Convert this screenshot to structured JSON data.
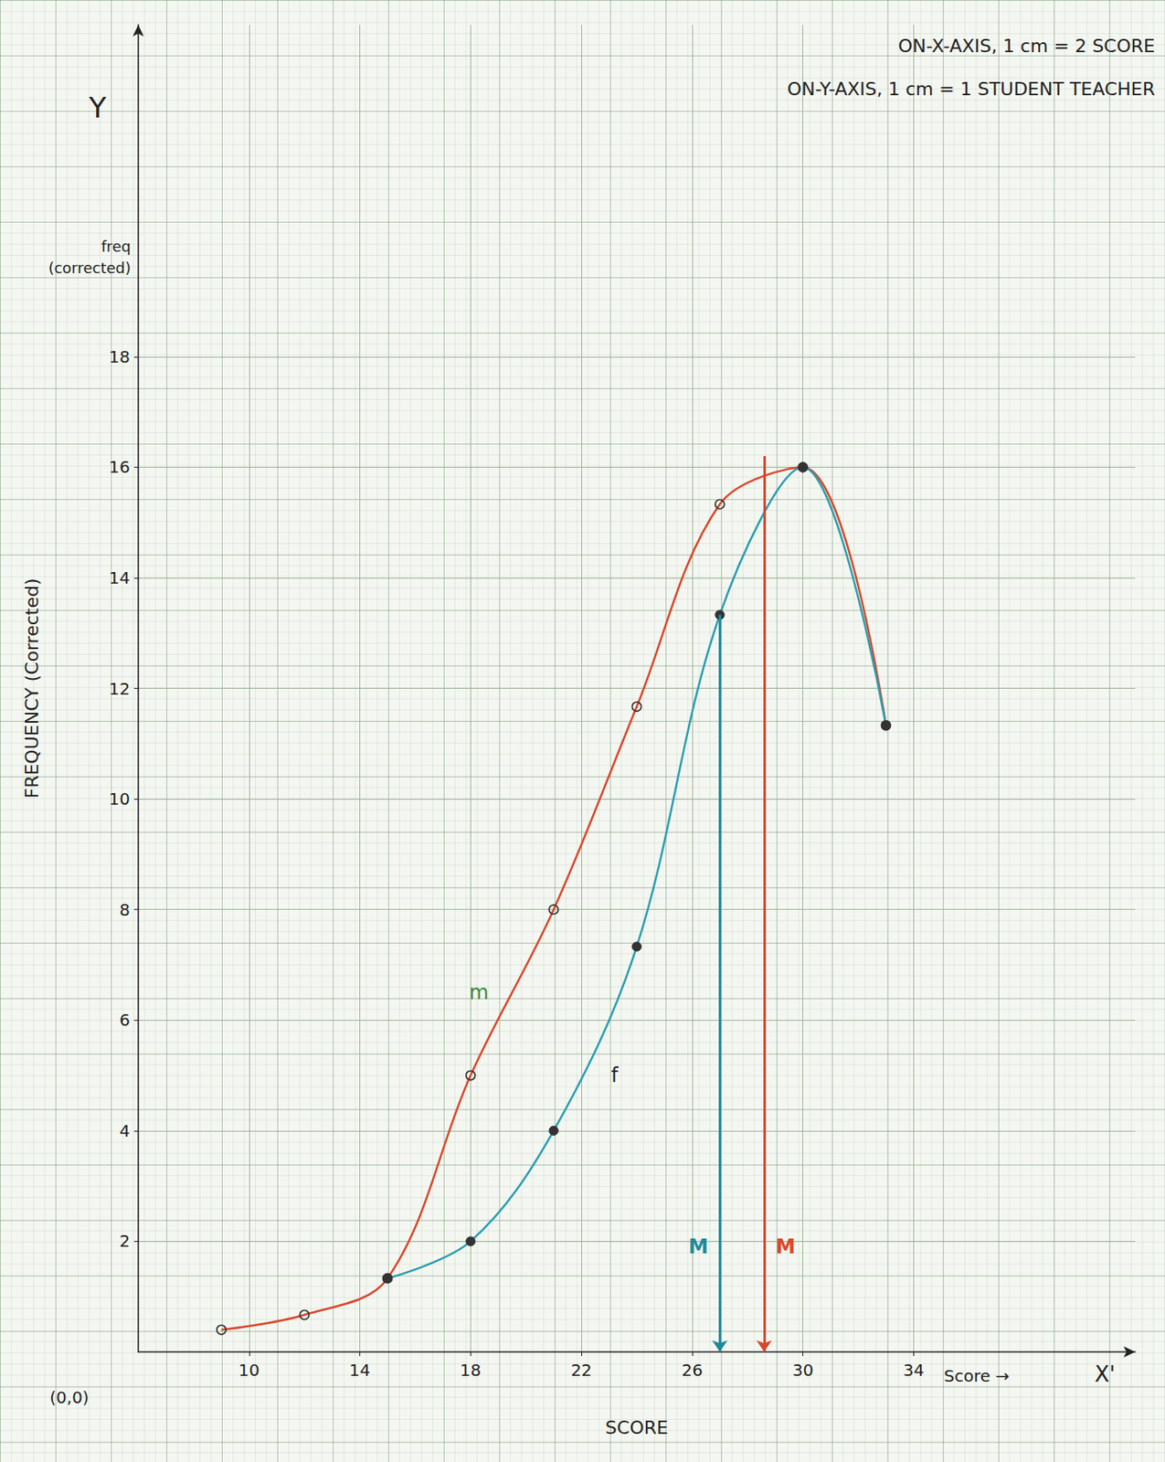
{
  "chart_data": {
    "type": "line",
    "notes": [
      "ON-X-AXIS, 1 cm = 2 SCORE",
      "ON-Y-AXIS, 1 cm = 1 STUDENT TEACHER"
    ],
    "x_label": "SCORE",
    "y_label": "FREQUENCY (Corrected)",
    "y_axis_note": "freq (corrected)",
    "axis_marks": {
      "y": "Y",
      "x": "X'",
      "origin": "(0,0)",
      "x_end": "Score →"
    },
    "xlim": [
      6,
      42
    ],
    "xticks": [
      10,
      14,
      18,
      22,
      26,
      30,
      34
    ],
    "ylim": [
      0,
      24
    ],
    "yticks": [
      2,
      4,
      6,
      8,
      10,
      12,
      14,
      16,
      18
    ],
    "grid": true,
    "series": [
      {
        "name": "m",
        "color": "#d9472b",
        "marker": "open_circle",
        "line_style": "solid",
        "x": [
          9,
          12,
          15,
          18,
          21,
          24,
          27,
          30,
          33
        ],
        "values": [
          0.4,
          0.67,
          1.33,
          5,
          8,
          11.67,
          15.33,
          16,
          11.33
        ]
      },
      {
        "name": "f",
        "color": "#2a9db0",
        "marker": "filled_circle",
        "line_style": "solid",
        "x": [
          15,
          18,
          21,
          24,
          27,
          30,
          33
        ],
        "values": [
          1.33,
          2,
          4,
          7.33,
          13.33,
          16,
          11.33
        ]
      }
    ],
    "annotations": [
      {
        "text": "m",
        "x": 18.3,
        "y": 6.5,
        "color": "#3a8a3a"
      },
      {
        "text": "f",
        "x": 23.2,
        "y": 5,
        "color": "#222222"
      }
    ],
    "markers": [
      {
        "label": "M",
        "x": 27,
        "y": 13.33,
        "label_y": 1.9,
        "color": "#1f8a9c"
      },
      {
        "label": "M",
        "x": 28.6,
        "y": 16.2,
        "label_y": 1.9,
        "color": "#d9472b"
      }
    ]
  }
}
